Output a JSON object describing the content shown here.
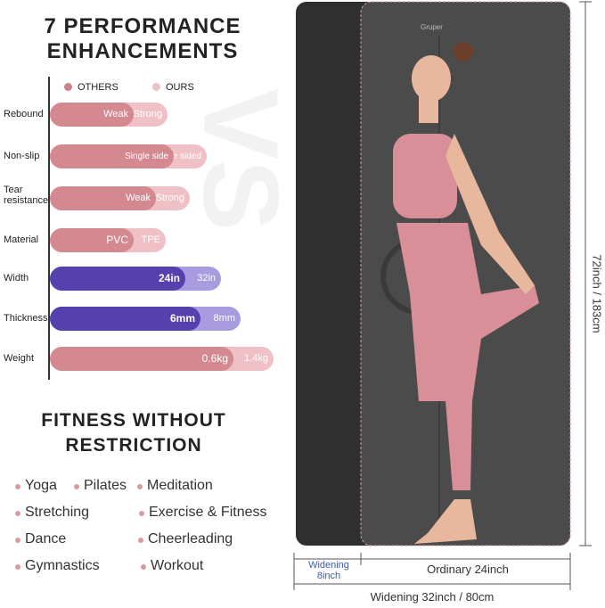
{
  "header": {
    "title": "7 PERFORMANCE ENHANCEMENTS"
  },
  "legend": {
    "others": "OTHERS",
    "ours": "OURS"
  },
  "watermark": "VS",
  "comparison": {
    "rows": [
      {
        "label": "Rebound",
        "others": "Weak",
        "ours": "Strong"
      },
      {
        "label": "Non-slip",
        "others": "Single side",
        "ours": "Double sided"
      },
      {
        "label": "Tear resistance",
        "others": "Weak",
        "ours": "Strong"
      },
      {
        "label": "Material",
        "others": "PVC",
        "ours": "TPE"
      },
      {
        "label": "Width",
        "others": "24in",
        "ours": "32in"
      },
      {
        "label": "Thickness",
        "others": "6mm",
        "ours": "8mm"
      },
      {
        "label": "Weight",
        "others": "0.6kg",
        "ours": "1.4kg"
      }
    ]
  },
  "fitness": {
    "title": "FITNESS WITHOUT RESTRICTION",
    "activities": [
      [
        "Yoga",
        "Pilates",
        "Meditation"
      ],
      [
        "Stretching",
        "Exercise & Fitness"
      ],
      [
        "Dance",
        "Cheerleading"
      ],
      [
        "Gymnastics",
        "Workout"
      ]
    ]
  },
  "mat": {
    "brand": "Gruper",
    "length": "72inch / 183cm",
    "widening": "Widening 8inch",
    "ordinary": "Ordinary 24inch",
    "total": "Widening 32inch / 80cm"
  }
}
